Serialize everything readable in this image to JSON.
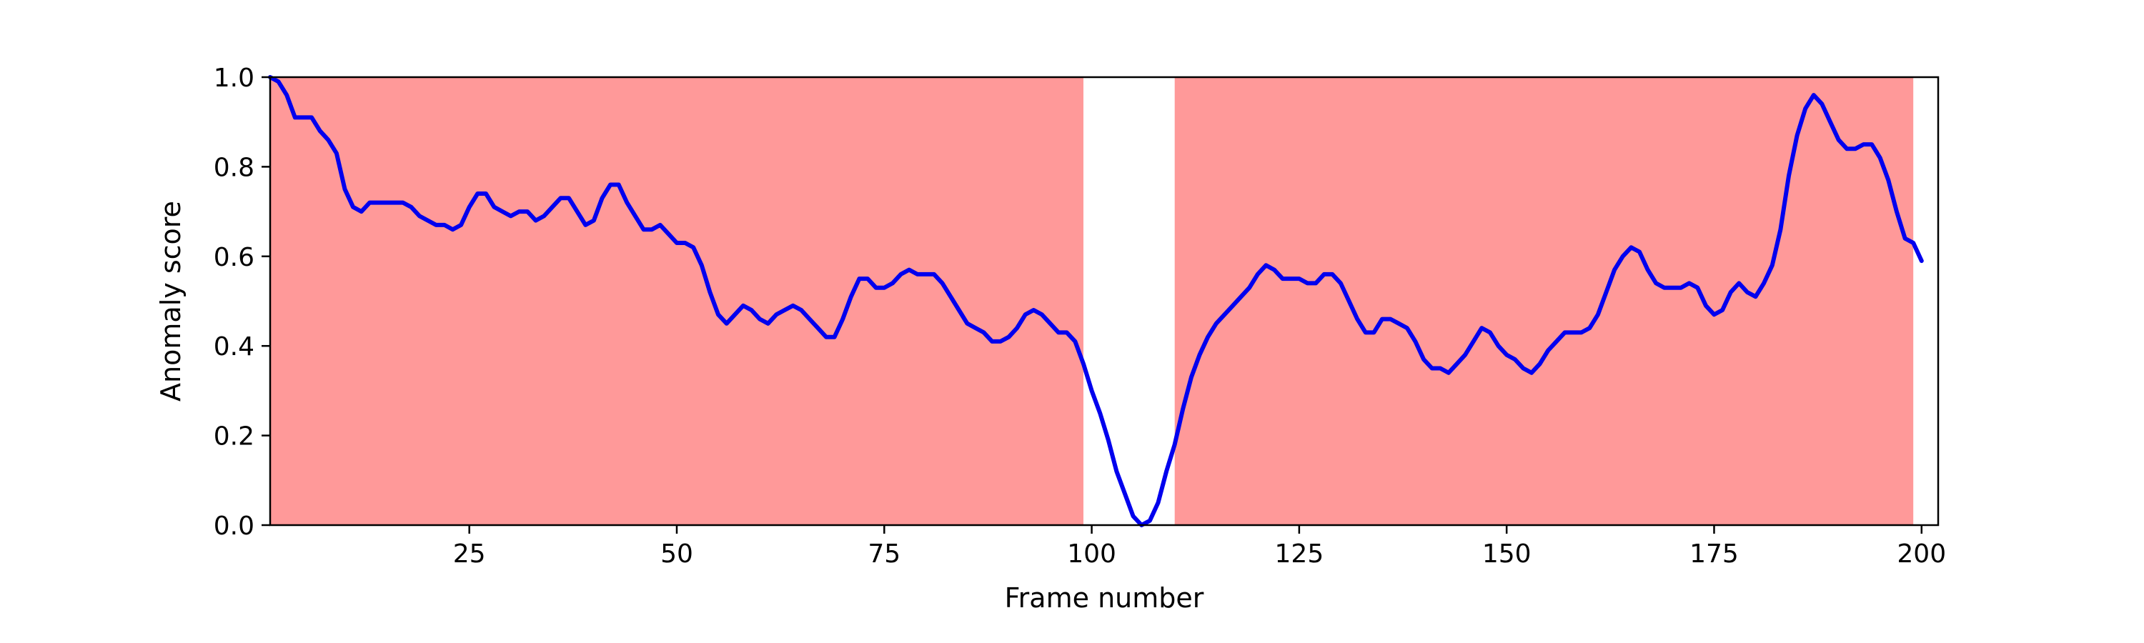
{
  "chart_data": {
    "type": "line",
    "xlabel": "Frame number",
    "ylabel": "Anomaly score",
    "xlim": [
      1,
      202
    ],
    "ylim": [
      0,
      1
    ],
    "x_ticks": [
      25,
      50,
      75,
      100,
      125,
      150,
      175,
      200
    ],
    "y_ticks": [
      "0.0",
      "0.2",
      "0.4",
      "0.6",
      "0.8",
      "1.0"
    ],
    "grid": false,
    "legend": "none",
    "colors": {
      "line": "#0000ee",
      "shade": "#ff9999",
      "axis": "#000000"
    },
    "shaded_regions": [
      {
        "x_start": 1,
        "x_end": 99
      },
      {
        "x_start": 110,
        "x_end": 199
      }
    ],
    "series": [
      {
        "points": [
          [
            1,
            1.0
          ],
          [
            2,
            0.99
          ],
          [
            3,
            0.96
          ],
          [
            4,
            0.91
          ],
          [
            5,
            0.91
          ],
          [
            6,
            0.91
          ],
          [
            7,
            0.88
          ],
          [
            8,
            0.86
          ],
          [
            9,
            0.83
          ],
          [
            10,
            0.75
          ],
          [
            11,
            0.71
          ],
          [
            12,
            0.7
          ],
          [
            13,
            0.72
          ],
          [
            14,
            0.72
          ],
          [
            15,
            0.72
          ],
          [
            16,
            0.72
          ],
          [
            17,
            0.72
          ],
          [
            18,
            0.71
          ],
          [
            19,
            0.69
          ],
          [
            20,
            0.68
          ],
          [
            21,
            0.67
          ],
          [
            22,
            0.67
          ],
          [
            23,
            0.66
          ],
          [
            24,
            0.67
          ],
          [
            25,
            0.71
          ],
          [
            26,
            0.74
          ],
          [
            27,
            0.74
          ],
          [
            28,
            0.71
          ],
          [
            29,
            0.7
          ],
          [
            30,
            0.69
          ],
          [
            31,
            0.7
          ],
          [
            32,
            0.7
          ],
          [
            33,
            0.68
          ],
          [
            34,
            0.69
          ],
          [
            35,
            0.71
          ],
          [
            36,
            0.73
          ],
          [
            37,
            0.73
          ],
          [
            38,
            0.7
          ],
          [
            39,
            0.67
          ],
          [
            40,
            0.68
          ],
          [
            41,
            0.73
          ],
          [
            42,
            0.76
          ],
          [
            43,
            0.76
          ],
          [
            44,
            0.72
          ],
          [
            45,
            0.69
          ],
          [
            46,
            0.66
          ],
          [
            47,
            0.66
          ],
          [
            48,
            0.67
          ],
          [
            49,
            0.65
          ],
          [
            50,
            0.63
          ],
          [
            51,
            0.63
          ],
          [
            52,
            0.62
          ],
          [
            53,
            0.58
          ],
          [
            54,
            0.52
          ],
          [
            55,
            0.47
          ],
          [
            56,
            0.45
          ],
          [
            57,
            0.47
          ],
          [
            58,
            0.49
          ],
          [
            59,
            0.48
          ],
          [
            60,
            0.46
          ],
          [
            61,
            0.45
          ],
          [
            62,
            0.47
          ],
          [
            63,
            0.48
          ],
          [
            64,
            0.49
          ],
          [
            65,
            0.48
          ],
          [
            66,
            0.46
          ],
          [
            67,
            0.44
          ],
          [
            68,
            0.42
          ],
          [
            69,
            0.42
          ],
          [
            70,
            0.46
          ],
          [
            71,
            0.51
          ],
          [
            72,
            0.55
          ],
          [
            73,
            0.55
          ],
          [
            74,
            0.53
          ],
          [
            75,
            0.53
          ],
          [
            76,
            0.54
          ],
          [
            77,
            0.56
          ],
          [
            78,
            0.57
          ],
          [
            79,
            0.56
          ],
          [
            80,
            0.56
          ],
          [
            81,
            0.56
          ],
          [
            82,
            0.54
          ],
          [
            83,
            0.51
          ],
          [
            84,
            0.48
          ],
          [
            85,
            0.45
          ],
          [
            86,
            0.44
          ],
          [
            87,
            0.43
          ],
          [
            88,
            0.41
          ],
          [
            89,
            0.41
          ],
          [
            90,
            0.42
          ],
          [
            91,
            0.44
          ],
          [
            92,
            0.47
          ],
          [
            93,
            0.48
          ],
          [
            94,
            0.47
          ],
          [
            95,
            0.45
          ],
          [
            96,
            0.43
          ],
          [
            97,
            0.43
          ],
          [
            98,
            0.41
          ],
          [
            99,
            0.36
          ],
          [
            100,
            0.3
          ],
          [
            101,
            0.25
          ],
          [
            102,
            0.19
          ],
          [
            103,
            0.12
          ],
          [
            104,
            0.07
          ],
          [
            105,
            0.02
          ],
          [
            106,
            0.0
          ],
          [
            107,
            0.01
          ],
          [
            108,
            0.05
          ],
          [
            109,
            0.12
          ],
          [
            110,
            0.18
          ],
          [
            111,
            0.26
          ],
          [
            112,
            0.33
          ],
          [
            113,
            0.38
          ],
          [
            114,
            0.42
          ],
          [
            115,
            0.45
          ],
          [
            116,
            0.47
          ],
          [
            117,
            0.49
          ],
          [
            118,
            0.51
          ],
          [
            119,
            0.53
          ],
          [
            120,
            0.56
          ],
          [
            121,
            0.58
          ],
          [
            122,
            0.57
          ],
          [
            123,
            0.55
          ],
          [
            124,
            0.55
          ],
          [
            125,
            0.55
          ],
          [
            126,
            0.54
          ],
          [
            127,
            0.54
          ],
          [
            128,
            0.56
          ],
          [
            129,
            0.56
          ],
          [
            130,
            0.54
          ],
          [
            131,
            0.5
          ],
          [
            132,
            0.46
          ],
          [
            133,
            0.43
          ],
          [
            134,
            0.43
          ],
          [
            135,
            0.46
          ],
          [
            136,
            0.46
          ],
          [
            137,
            0.45
          ],
          [
            138,
            0.44
          ],
          [
            139,
            0.41
          ],
          [
            140,
            0.37
          ],
          [
            141,
            0.35
          ],
          [
            142,
            0.35
          ],
          [
            143,
            0.34
          ],
          [
            144,
            0.36
          ],
          [
            145,
            0.38
          ],
          [
            146,
            0.41
          ],
          [
            147,
            0.44
          ],
          [
            148,
            0.43
          ],
          [
            149,
            0.4
          ],
          [
            150,
            0.38
          ],
          [
            151,
            0.37
          ],
          [
            152,
            0.35
          ],
          [
            153,
            0.34
          ],
          [
            154,
            0.36
          ],
          [
            155,
            0.39
          ],
          [
            156,
            0.41
          ],
          [
            157,
            0.43
          ],
          [
            158,
            0.43
          ],
          [
            159,
            0.43
          ],
          [
            160,
            0.44
          ],
          [
            161,
            0.47
          ],
          [
            162,
            0.52
          ],
          [
            163,
            0.57
          ],
          [
            164,
            0.6
          ],
          [
            165,
            0.62
          ],
          [
            166,
            0.61
          ],
          [
            167,
            0.57
          ],
          [
            168,
            0.54
          ],
          [
            169,
            0.53
          ],
          [
            170,
            0.53
          ],
          [
            171,
            0.53
          ],
          [
            172,
            0.54
          ],
          [
            173,
            0.53
          ],
          [
            174,
            0.49
          ],
          [
            175,
            0.47
          ],
          [
            176,
            0.48
          ],
          [
            177,
            0.52
          ],
          [
            178,
            0.54
          ],
          [
            179,
            0.52
          ],
          [
            180,
            0.51
          ],
          [
            181,
            0.54
          ],
          [
            182,
            0.58
          ],
          [
            183,
            0.66
          ],
          [
            184,
            0.78
          ],
          [
            185,
            0.87
          ],
          [
            186,
            0.93
          ],
          [
            187,
            0.96
          ],
          [
            188,
            0.94
          ],
          [
            189,
            0.9
          ],
          [
            190,
            0.86
          ],
          [
            191,
            0.84
          ],
          [
            192,
            0.84
          ],
          [
            193,
            0.85
          ],
          [
            194,
            0.85
          ],
          [
            195,
            0.82
          ],
          [
            196,
            0.77
          ],
          [
            197,
            0.7
          ],
          [
            198,
            0.64
          ],
          [
            199,
            0.63
          ],
          [
            200,
            0.59
          ]
        ]
      }
    ]
  }
}
